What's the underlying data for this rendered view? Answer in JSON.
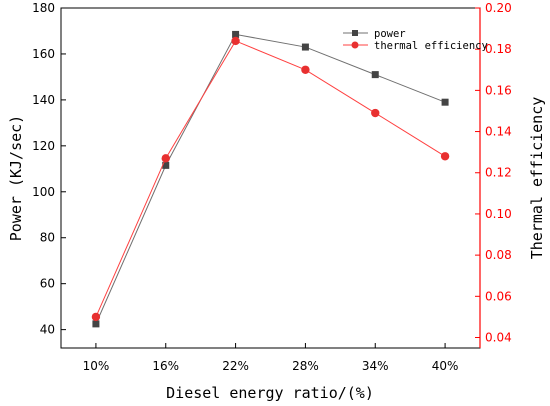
{
  "chart_data": {
    "type": "line",
    "x_axis": {
      "label": "Diesel energy ratio/(%)",
      "categories": [
        "10%",
        "16%",
        "22%",
        "28%",
        "34%",
        "40%"
      ]
    },
    "y_left": {
      "label": "Power (KJ/sec)",
      "range": [
        32,
        180
      ],
      "ticks": [
        40,
        60,
        80,
        100,
        120,
        140,
        160,
        180
      ]
    },
    "y_right": {
      "label": "Thermal efficiency",
      "range": [
        0.0349,
        0.2
      ],
      "ticks": [
        0.04,
        0.06,
        0.08,
        0.1,
        0.12,
        0.14,
        0.16,
        0.18,
        0.2
      ],
      "tick_labels": [
        "0.04",
        "0.06",
        "0.08",
        "0.10",
        "0.12",
        "0.14",
        "0.16",
        "0.18",
        "0.20"
      ],
      "color": "#ff0000"
    },
    "series": [
      {
        "name": "power",
        "axis": "left",
        "marker": "square",
        "color": "#444444",
        "line_color": "#707070",
        "values": [
          42.5,
          111.5,
          168.5,
          163,
          151,
          139
        ]
      },
      {
        "name": "thermal efficiency",
        "axis": "right",
        "marker": "circle",
        "color": "#e83030",
        "line_color": "#ff4040",
        "values": [
          0.05,
          0.127,
          0.184,
          0.17,
          0.149,
          0.128
        ]
      }
    ],
    "legend_position": "top-right",
    "grid": false
  }
}
